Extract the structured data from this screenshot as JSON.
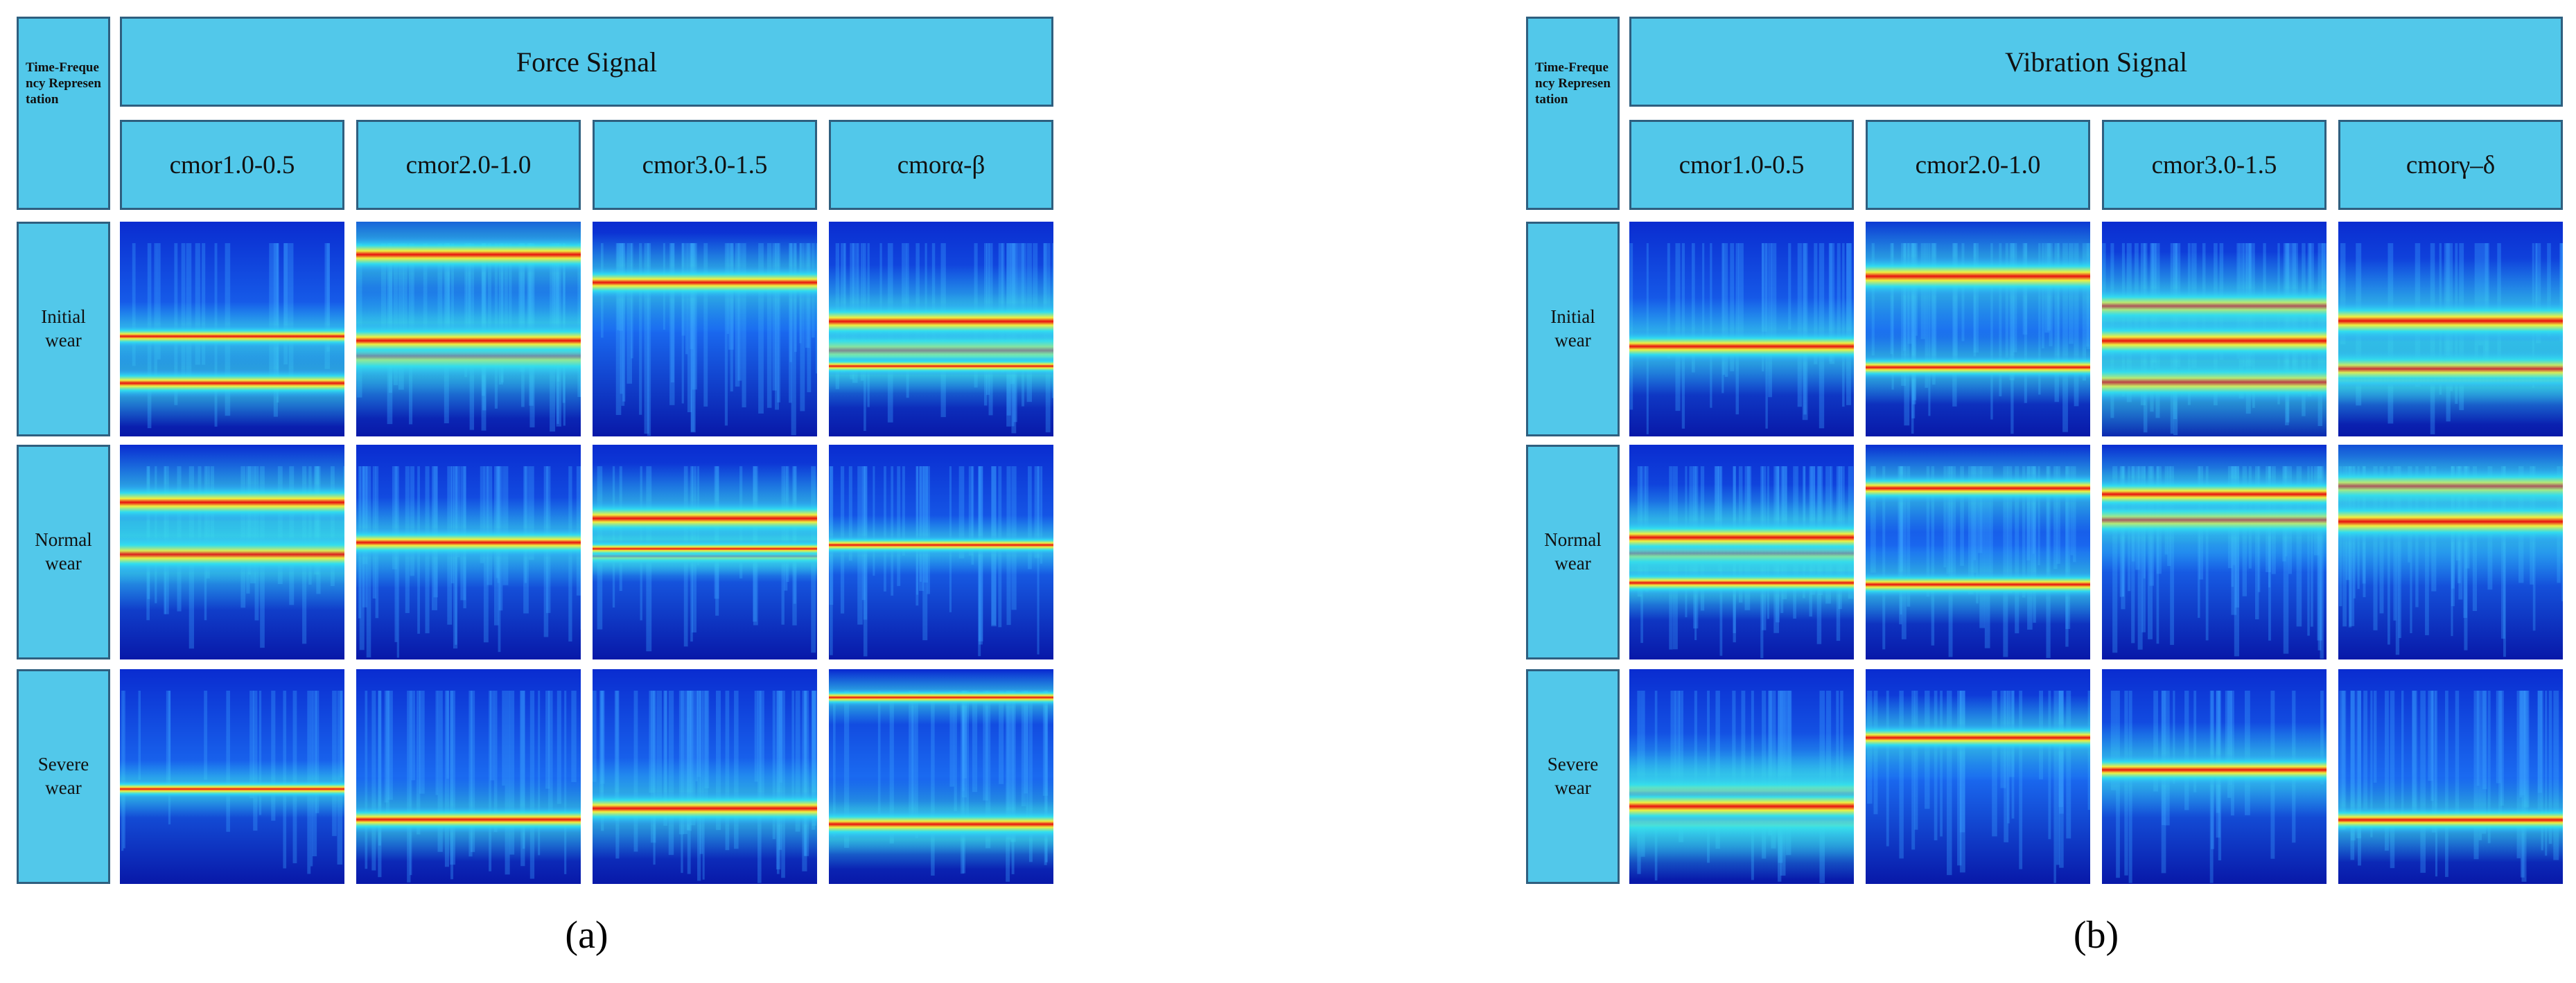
{
  "panels": [
    {
      "corner_label": "Time-Frequency Representation",
      "title": "Force Signal",
      "columns": [
        "cmor1.0-0.5",
        "cmor2.0-1.0",
        "cmor3.0-1.5",
        "cmorα-β"
      ],
      "rows": [
        "Initial wear",
        "Normal wear",
        "Severe wear"
      ],
      "caption": "(a)"
    },
    {
      "corner_label": "Time-Frequency Representation",
      "title": "Vibration Signal",
      "columns": [
        "cmor1.0-0.5",
        "cmor2.0-1.0",
        "cmor3.0-1.5",
        "cmorγ–δ"
      ],
      "rows": [
        "Initial wear",
        "Normal wear",
        "Severe wear"
      ],
      "caption": "(b)"
    }
  ]
}
